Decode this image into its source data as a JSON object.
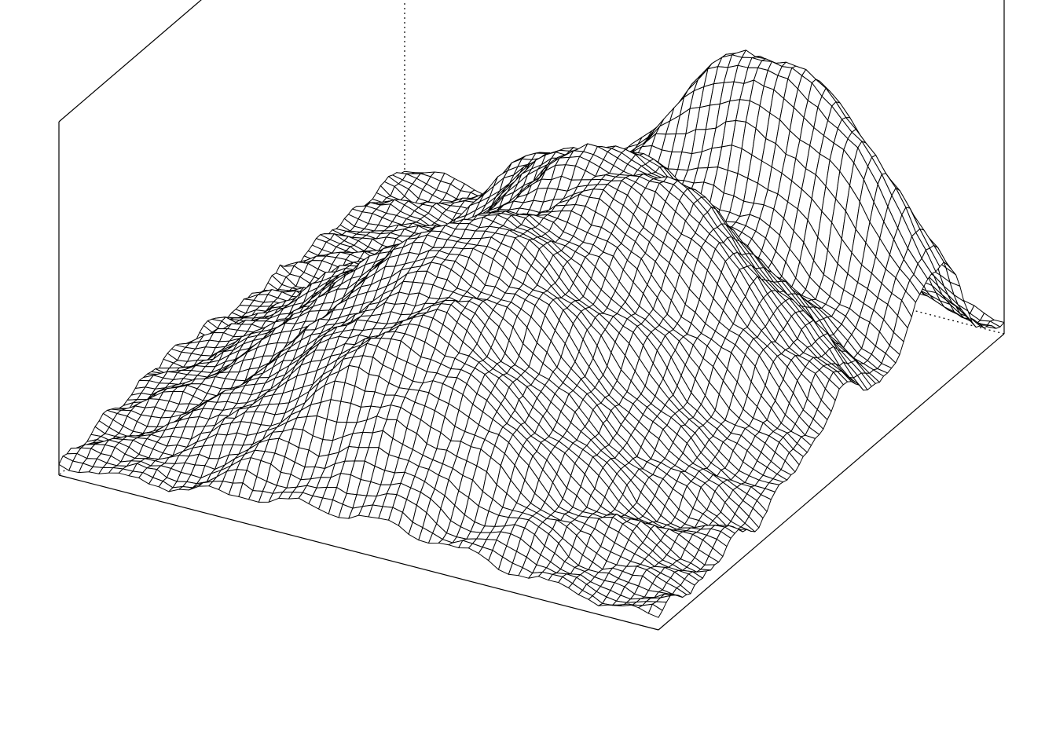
{
  "chart_data": {
    "type": "surface",
    "title": "",
    "xlabel": "",
    "ylabel": "",
    "zlabel": "",
    "axes_labels_shown": false,
    "grid": false,
    "legend": "none",
    "line_color": "#000000",
    "fill_color": "#ffffff",
    "background_color": "#ffffff",
    "x": {
      "range": [
        0,
        1
      ],
      "count": 87
    },
    "y": {
      "range": [
        0,
        1
      ],
      "count": 61
    },
    "z": {
      "range": [
        0,
        1
      ],
      "base": 0.03,
      "peaks": [
        {
          "x": 0.8,
          "y": 0.26,
          "height": 0.78,
          "sx": 0.065,
          "sy": 0.2
        },
        {
          "x": 0.55,
          "y": 0.34,
          "height": 0.62,
          "sx": 0.1,
          "sy": 0.22
        },
        {
          "x": 0.33,
          "y": 0.5,
          "height": 0.54,
          "sx": 0.1,
          "sy": 0.22
        },
        {
          "x": 0.14,
          "y": 0.5,
          "height": 0.32,
          "sx": 0.08,
          "sy": 0.2
        },
        {
          "x": 0.66,
          "y": 0.58,
          "height": 0.26,
          "sx": 0.08,
          "sy": 0.14
        },
        {
          "x": 0.47,
          "y": 0.78,
          "height": 0.1,
          "sx": 0.06,
          "sy": 0.07
        },
        {
          "x": 0.95,
          "y": 0.2,
          "height": 0.05,
          "sx": 0.05,
          "sy": 0.12
        }
      ]
    }
  }
}
